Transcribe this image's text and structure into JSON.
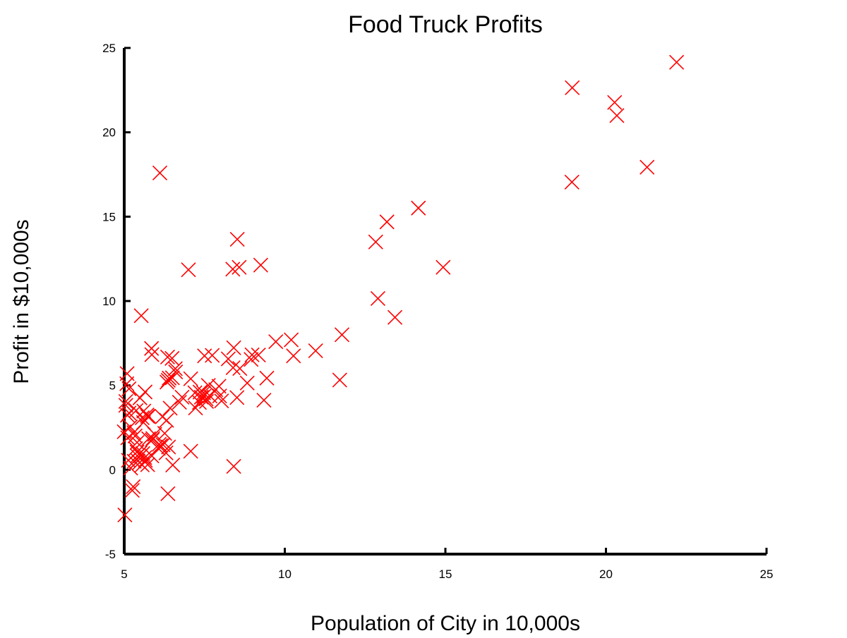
{
  "chart_data": {
    "type": "scatter",
    "title": "Food Truck Profits",
    "xlabel": "Population of City in 10,000s",
    "ylabel": "Profit in $10,000s",
    "xlim": [
      5,
      25
    ],
    "ylim": [
      -5,
      25
    ],
    "xticks": [
      "5",
      "10",
      "15",
      "20",
      "25"
    ],
    "yticks": [
      "-5",
      "0",
      "5",
      "10",
      "15",
      "20",
      "25"
    ],
    "grid": false,
    "marker": "x",
    "colors": {
      "marker": "#ff0000",
      "axis": "#000000",
      "background": "#ffffff"
    },
    "series": [
      {
        "points": [
          [
            6.11,
            17.59
          ],
          [
            5.53,
            9.13
          ],
          [
            8.52,
            13.66
          ],
          [
            7.0,
            11.85
          ],
          [
            5.86,
            6.82
          ],
          [
            8.38,
            11.89
          ],
          [
            7.48,
            4.35
          ],
          [
            8.58,
            12.0
          ],
          [
            6.49,
            6.6
          ],
          [
            5.05,
            3.82
          ],
          [
            5.71,
            3.25
          ],
          [
            14.16,
            15.51
          ],
          [
            5.73,
            3.16
          ],
          [
            8.41,
            7.23
          ],
          [
            5.64,
            0.72
          ],
          [
            5.37,
            3.51
          ],
          [
            6.37,
            5.3
          ],
          [
            5.13,
            0.56
          ],
          [
            6.43,
            3.65
          ],
          [
            7.07,
            5.39
          ],
          [
            6.19,
            3.14
          ],
          [
            20.27,
            21.77
          ],
          [
            5.49,
            4.26
          ],
          [
            6.33,
            5.19
          ],
          [
            5.56,
            3.08
          ],
          [
            18.95,
            22.64
          ],
          [
            12.83,
            13.5
          ],
          [
            10.96,
            7.05
          ],
          [
            13.18,
            14.69
          ],
          [
            22.2,
            24.15
          ],
          [
            5.25,
            -1.22
          ],
          [
            6.59,
            5.99
          ],
          [
            9.25,
            12.13
          ],
          [
            5.89,
            1.85
          ],
          [
            8.95,
            6.54
          ],
          [
            7.2,
            4.56
          ],
          [
            9.35,
            4.12
          ],
          [
            6.35,
            6.68
          ],
          [
            5.56,
            0.29
          ],
          [
            5.76,
            3.17
          ],
          [
            6.26,
            2.16
          ],
          [
            7.34,
            3.99
          ],
          [
            9.72,
            7.59
          ],
          [
            5.15,
            4.8
          ],
          [
            5.43,
            0.53
          ],
          [
            6.09,
            1.51
          ],
          [
            6.38,
            1.35
          ],
          [
            5.28,
            -1.0
          ],
          [
            11.78,
            8.0
          ],
          [
            5.02,
            -2.68
          ],
          [
            5.31,
            0.5
          ],
          [
            7.47,
            4.56
          ],
          [
            8.39,
            6.05
          ],
          [
            5.49,
            0.99
          ],
          [
            5.61,
            3.48
          ],
          [
            5.19,
            2.54
          ],
          [
            5.58,
            0.96
          ],
          [
            5.66,
            0.56
          ],
          [
            5.87,
            1.76
          ],
          [
            8.83,
            5.14
          ],
          [
            5.51,
            0.82
          ],
          [
            5.41,
            0.82
          ],
          [
            7.22,
            3.66
          ],
          [
            6.51,
            0.28
          ],
          [
            11.71,
            5.32
          ],
          [
            20.34,
            20.99
          ],
          [
            8.41,
            0.2
          ],
          [
            18.94,
            17.05
          ],
          [
            21.28,
            17.93
          ],
          [
            6.4,
            5.43
          ],
          [
            5.34,
            2.0
          ],
          [
            5.09,
            5.7
          ],
          [
            7.07,
            1.1
          ],
          [
            5.86,
            0.82
          ],
          [
            5.65,
            4.61
          ],
          [
            5.85,
            7.19
          ],
          [
            5.4,
            1.05
          ],
          [
            6.36,
            -1.42
          ],
          [
            7.74,
            6.78
          ],
          [
            8.24,
            6.57
          ],
          [
            5.1,
            3.23
          ],
          [
            7.36,
            4.6
          ],
          [
            8.98,
            6.81
          ],
          [
            10.27,
            6.75
          ],
          [
            6.06,
            1.27
          ],
          [
            6.32,
            2.93
          ],
          [
            13.43,
            9.03
          ],
          [
            8.51,
            4.28
          ],
          [
            7.97,
            4.37
          ],
          [
            12.9,
            10.15
          ],
          [
            5.48,
            0.43
          ],
          [
            14.93,
            12.0
          ],
          [
            5.76,
            1.84
          ],
          [
            9.18,
            6.8
          ],
          [
            7.67,
            4.37
          ],
          [
            7.56,
            4.05
          ],
          [
            5.11,
            1.89
          ],
          [
            6.13,
            1.43
          ],
          [
            5.0,
            2.25
          ],
          [
            6.72,
            4.0
          ],
          [
            6.3,
            1.0
          ],
          [
            7.5,
            6.75
          ],
          [
            10.2,
            7.7
          ],
          [
            9.44,
            5.43
          ],
          [
            5.3,
            2.2
          ],
          [
            5.08,
            5.1
          ],
          [
            5.15,
            3.36
          ],
          [
            8.03,
            4.08
          ],
          [
            6.21,
            1.48
          ],
          [
            5.6,
            2.8
          ],
          [
            5.4,
            1.62
          ],
          [
            5.73,
            0.3
          ],
          [
            6.8,
            4.3
          ],
          [
            7.62,
            5.0
          ],
          [
            5.95,
            2.1
          ],
          [
            6.6,
            5.8
          ],
          [
            7.95,
            4.95
          ],
          [
            5.2,
            0.1
          ],
          [
            7.4,
            4.3
          ],
          [
            6.5,
            5.45
          ],
          [
            5.05,
            4.05
          ],
          [
            7.55,
            4.2
          ],
          [
            8.6,
            6.0
          ],
          [
            7.85,
            4.75
          ],
          [
            5.35,
            1.25
          ]
        ]
      }
    ]
  }
}
